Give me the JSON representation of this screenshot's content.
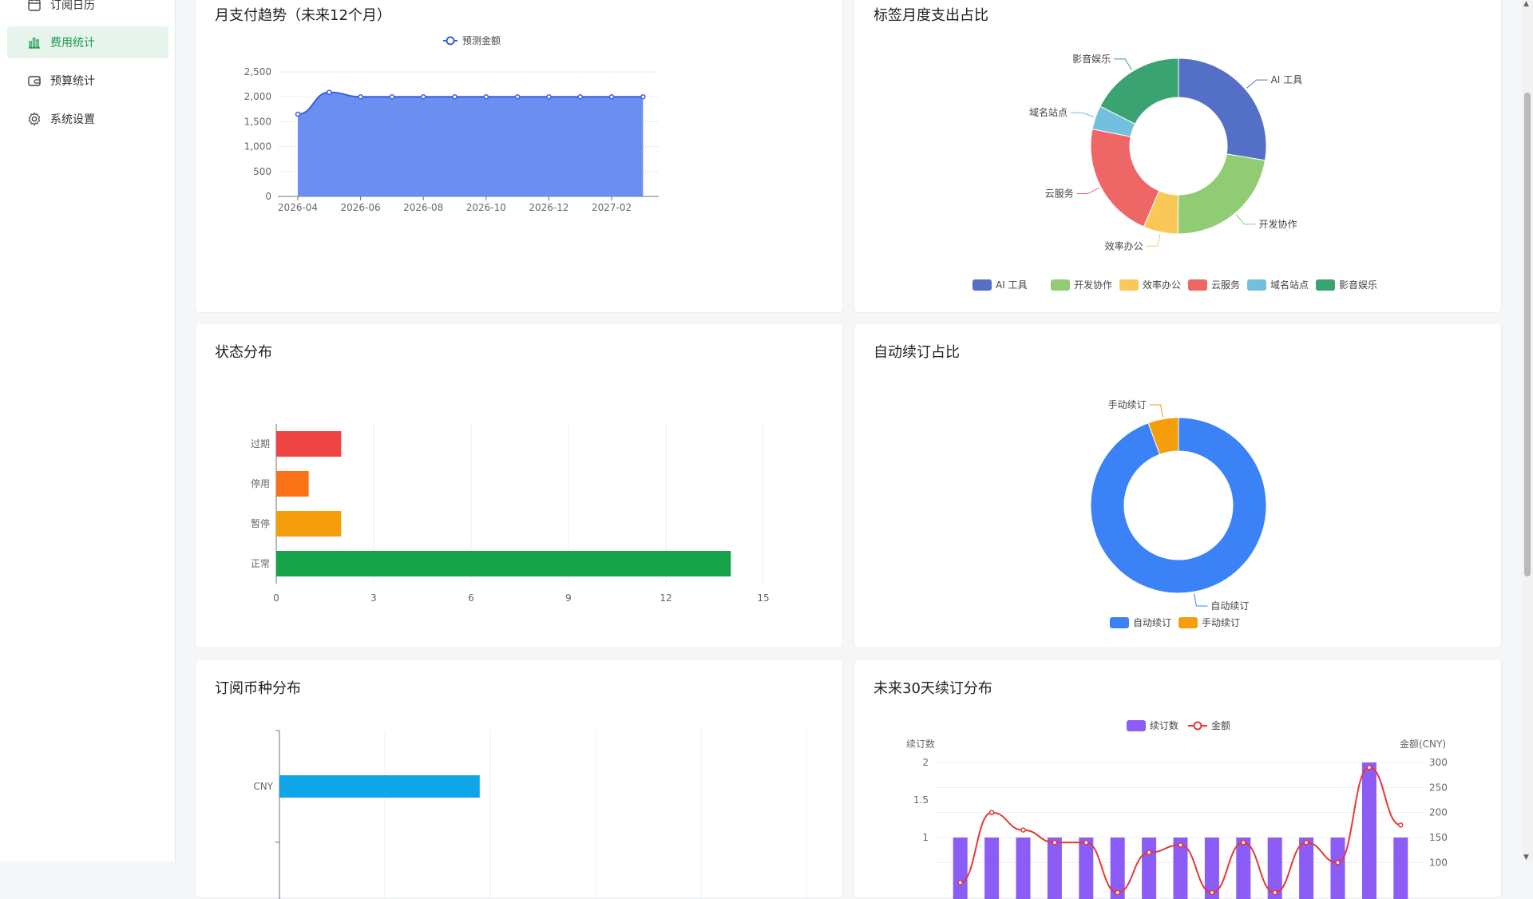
{
  "sidebar": {
    "items": [
      {
        "label": "订阅日历",
        "icon": "calendar-icon"
      },
      {
        "label": "费用统计",
        "icon": "bar-chart-icon",
        "active": true
      },
      {
        "label": "预算统计",
        "icon": "wallet-icon"
      },
      {
        "label": "系统设置",
        "icon": "gear-icon"
      }
    ]
  },
  "colors": {
    "accent": "#1a9a4f",
    "area_fill": "#6b8ff0",
    "area_line": "#3b5fe0"
  },
  "cards": {
    "monthly_trend": {
      "title": "月支付趋势（未来12个月）"
    },
    "tag_share": {
      "title": "标签月度支出占比"
    },
    "status": {
      "title": "状态分布"
    },
    "auto_renew": {
      "title": "自动续订占比"
    },
    "currency": {
      "title": "订阅币种分布"
    },
    "renew30": {
      "title": "未来30天续订分布"
    }
  },
  "chart_data": [
    {
      "id": "monthly_trend",
      "type": "area",
      "legend": [
        "预测金额"
      ],
      "series": [
        {
          "name": "预测金额",
          "values": [
            1650,
            2090,
            2000,
            2000,
            2000,
            2000,
            2000,
            2000,
            2000,
            2000,
            2000,
            2000
          ]
        }
      ],
      "x_tick_labels": [
        "2026-04",
        "2026-06",
        "2026-08",
        "2026-10",
        "2026-12",
        "2027-02"
      ],
      "ylim": [
        0,
        2500
      ],
      "y_ticks": [
        "0",
        "500",
        "1,000",
        "1,500",
        "2,000",
        "2,500"
      ]
    },
    {
      "id": "tag_share",
      "type": "pie",
      "donut": true,
      "slices": [
        {
          "name": "AI 工具",
          "value": 27.6,
          "color": "#5470c6"
        },
        {
          "name": "开发协作",
          "value": 22.5,
          "color": "#91cc75"
        },
        {
          "name": "效率办公",
          "value": 6.4,
          "color": "#fac858"
        },
        {
          "name": "云服务",
          "value": 21.6,
          "color": "#ee6666"
        },
        {
          "name": "域名站点",
          "value": 4.4,
          "color": "#73c0de"
        },
        {
          "name": "影音娱乐",
          "value": 17.5,
          "color": "#3ba272"
        }
      ]
    },
    {
      "id": "status",
      "type": "bar",
      "orientation": "horizontal",
      "categories": [
        "过期",
        "停用",
        "暂停",
        "正常"
      ],
      "values": [
        2,
        1,
        2,
        14
      ],
      "colors": [
        "#ef4444",
        "#f97316",
        "#f59e0b",
        "#16a34a"
      ],
      "xlim": [
        0,
        15
      ],
      "x_ticks": [
        "0",
        "3",
        "6",
        "9",
        "12",
        "15"
      ]
    },
    {
      "id": "auto_renew",
      "type": "pie",
      "donut": true,
      "slices": [
        {
          "name": "自动续订",
          "value": 94.4,
          "color": "#3b82f6"
        },
        {
          "name": "手动续订",
          "value": 5.6,
          "color": "#f59e0b"
        }
      ]
    },
    {
      "id": "currency",
      "type": "bar",
      "orientation": "horizontal",
      "categories": [
        "CNY"
      ],
      "values": [
        19
      ],
      "colors": [
        "#0ea5e9"
      ],
      "xlim": [
        0,
        50
      ]
    },
    {
      "id": "renew30",
      "type": "bar",
      "legend": [
        "续订数",
        "金额"
      ],
      "y_axis_left": {
        "label": "续订数",
        "ticks": [
          "1",
          "1.5",
          "2"
        ]
      },
      "y_axis_right": {
        "label": "金额(CNY)",
        "ticks": [
          "100",
          "150",
          "200",
          "250",
          "300"
        ]
      },
      "series": [
        {
          "name": "续订数",
          "type": "bar",
          "color": "#8b5cf6",
          "values": [
            1,
            1,
            1,
            1,
            1,
            1,
            1,
            1,
            1,
            1,
            1,
            1,
            1,
            2,
            1
          ]
        },
        {
          "name": "金额",
          "type": "line",
          "color": "#e53935",
          "values": [
            60,
            200,
            165,
            140,
            140,
            40,
            120,
            135,
            40,
            140,
            40,
            140,
            100,
            290,
            175
          ]
        }
      ]
    }
  ]
}
